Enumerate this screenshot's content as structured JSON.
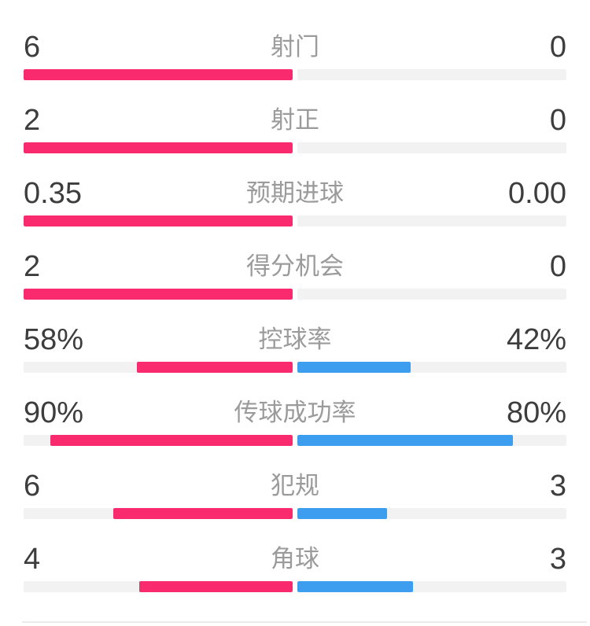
{
  "colors": {
    "home_bar": "#f92a6e",
    "away_bar": "#3d9ef0",
    "bar_track": "#f2f2f2",
    "value_text": "#3d3d3d",
    "label_text": "#9b9b9b",
    "divider": "#ebebeb",
    "background": "#ffffff"
  },
  "stats": {
    "rows": [
      {
        "label": "射门",
        "home": "6",
        "away": "0",
        "home_pct": 100,
        "away_pct": 0
      },
      {
        "label": "射正",
        "home": "2",
        "away": "0",
        "home_pct": 100,
        "away_pct": 0
      },
      {
        "label": "预期进球",
        "home": "0.35",
        "away": "0.00",
        "home_pct": 100,
        "away_pct": 0
      },
      {
        "label": "得分机会",
        "home": "2",
        "away": "0",
        "home_pct": 100,
        "away_pct": 0
      },
      {
        "label": "控球率",
        "home": "58%",
        "away": "42%",
        "home_pct": 58,
        "away_pct": 42
      },
      {
        "label": "传球成功率",
        "home": "90%",
        "away": "80%",
        "home_pct": 90,
        "away_pct": 80
      },
      {
        "label": "犯规",
        "home": "6",
        "away": "3",
        "home_pct": 66.7,
        "away_pct": 33.3
      },
      {
        "label": "角球",
        "home": "4",
        "away": "3",
        "home_pct": 57.1,
        "away_pct": 42.9
      }
    ]
  },
  "chart_data": {
    "type": "bar",
    "subtype": "paired-horizontal-comparison-centered",
    "categories": [
      "射门",
      "射正",
      "预期进球",
      "得分机会",
      "控球率",
      "传球成功率",
      "犯规",
      "角球"
    ],
    "series": [
      {
        "name": "home",
        "color": "#f92a6e",
        "values": [
          6,
          2,
          0.35,
          2,
          58,
          90,
          6,
          4
        ],
        "display": [
          "6",
          "2",
          "0.35",
          "2",
          "58%",
          "90%",
          "6",
          "4"
        ]
      },
      {
        "name": "away",
        "color": "#3d9ef0",
        "values": [
          0,
          0,
          0.0,
          0,
          42,
          80,
          3,
          3
        ],
        "display": [
          "0",
          "0",
          "0.00",
          "0",
          "42%",
          "80%",
          "3",
          "3"
        ]
      }
    ],
    "title": "",
    "xlabel": "",
    "ylabel": "",
    "legend": "none",
    "grid": false,
    "layout_hint": "Each row: home value left, gray category label centered, away value right; bars grow outward from vertical center line over light-gray tracks; rows with away value 0 show fully filled left half and empty right half"
  }
}
